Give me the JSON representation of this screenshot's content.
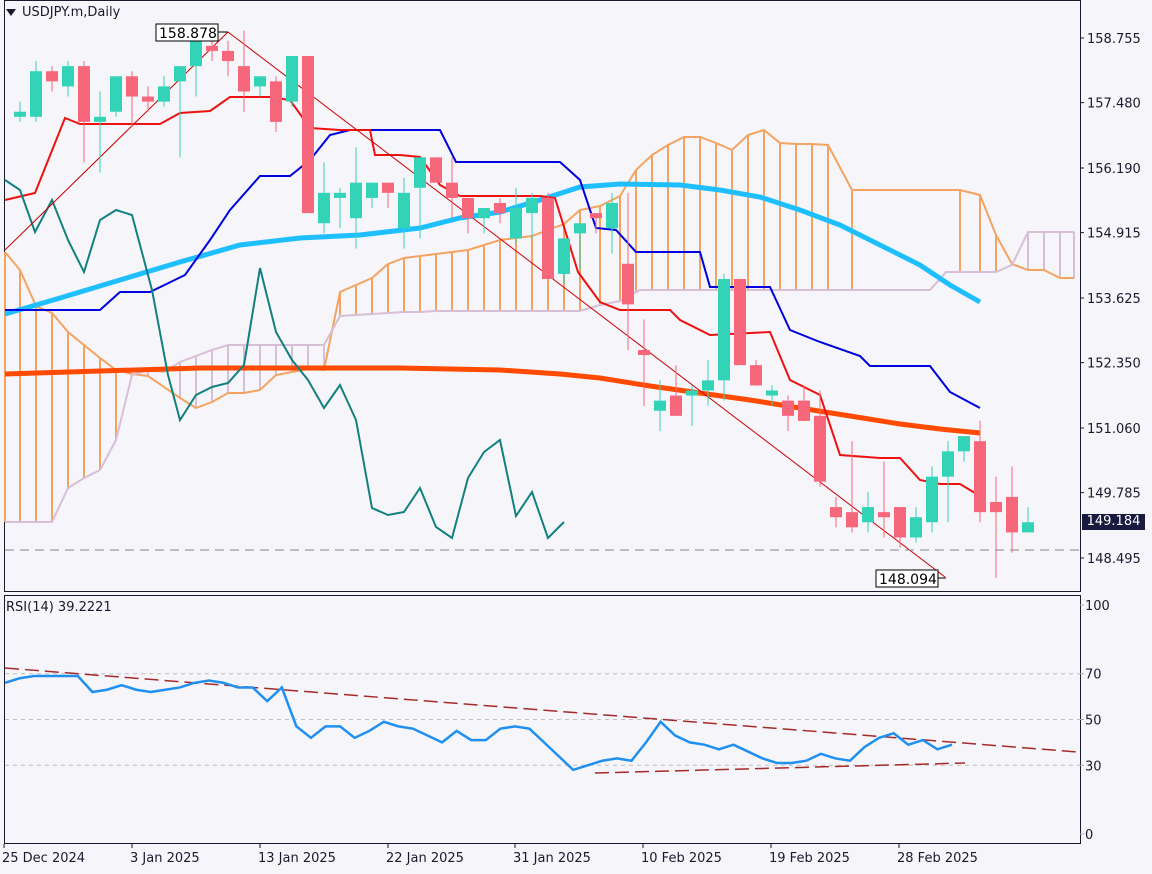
{
  "header": {
    "symbol_label": "USDJPY.m,Daily",
    "dropdown_icon": "triangle-down"
  },
  "current_price": "149.184",
  "annotations": {
    "high_label": "158.878",
    "low_label": "148.094"
  },
  "rsi": {
    "label": "RSI(14) 39.2221"
  },
  "colors": {
    "background": "#f5f5fa",
    "axis": "#1a1a2e",
    "bull": "#33d3b8",
    "bear": "#f7677b",
    "tenkan": "#ee1111",
    "kijun": "#0000dd",
    "chikou": "#138080",
    "ma_fast": "#1fbfff",
    "ma_slow": "#ff4a00",
    "span_a": "#f4a460",
    "span_b": "#d8bfd8",
    "rsi_line": "#2090f0",
    "trendline": "#cc0000",
    "rsi_trend": "#a52a2a",
    "current_tag": "#181a40"
  },
  "chart_data": [
    {
      "type": "candlestick",
      "title": "USDJPY.m,Daily",
      "yaxis": {
        "ticks": [
          "158.755",
          "157.480",
          "156.190",
          "154.915",
          "153.625",
          "152.350",
          "151.060",
          "149.785",
          "148.495"
        ],
        "range": [
          148.0,
          159.1
        ]
      },
      "xaxis": {
        "ticks": [
          "25 Dec 2024",
          "3 Jan 2025",
          "13 Jan 2025",
          "22 Jan 2025",
          "31 Jan 2025",
          "10 Feb 2025",
          "19 Feb 2025",
          "28 Feb 2025"
        ]
      },
      "candles_ohlc": [
        [
          157.2,
          157.5,
          157.1,
          157.3
        ],
        [
          157.2,
          158.3,
          157.1,
          158.1
        ],
        [
          158.1,
          158.2,
          157.7,
          157.9
        ],
        [
          157.8,
          158.3,
          157.6,
          158.2
        ],
        [
          158.2,
          158.3,
          156.3,
          157.1
        ],
        [
          157.1,
          157.7,
          156.1,
          157.2
        ],
        [
          157.3,
          158.0,
          157.2,
          158.0
        ],
        [
          158.0,
          158.1,
          157.0,
          157.6
        ],
        [
          157.6,
          157.8,
          157.3,
          157.5
        ],
        [
          157.5,
          158.0,
          157.4,
          157.8
        ],
        [
          157.9,
          158.2,
          156.4,
          158.2
        ],
        [
          158.2,
          158.9,
          157.6,
          158.9
        ],
        [
          158.6,
          158.9,
          158.3,
          158.5
        ],
        [
          158.5,
          158.7,
          158.0,
          158.3
        ],
        [
          158.2,
          158.9,
          157.3,
          157.7
        ],
        [
          157.8,
          158.0,
          157.6,
          158.0
        ],
        [
          157.9,
          158.0,
          156.9,
          157.1
        ],
        [
          157.5,
          158.4,
          157.4,
          158.4
        ],
        [
          158.4,
          158.4,
          155.3,
          155.3
        ],
        [
          155.1,
          156.3,
          154.9,
          155.7
        ],
        [
          155.6,
          155.8,
          155.0,
          155.7
        ],
        [
          155.2,
          156.6,
          154.6,
          155.9
        ],
        [
          155.6,
          155.9,
          155.4,
          155.9
        ],
        [
          155.9,
          155.9,
          155.4,
          155.7
        ],
        [
          155.0,
          156.0,
          154.6,
          155.7
        ],
        [
          155.8,
          156.1,
          154.8,
          156.4
        ],
        [
          156.4,
          156.4,
          155.9,
          155.9
        ],
        [
          155.9,
          156.4,
          155.2,
          155.6
        ],
        [
          155.6,
          155.6,
          154.9,
          155.2
        ],
        [
          155.2,
          155.3,
          154.9,
          155.4
        ],
        [
          155.5,
          155.6,
          155.1,
          155.3
        ],
        [
          154.8,
          155.8,
          154.7,
          155.4
        ],
        [
          155.3,
          155.7,
          154.8,
          155.6
        ],
        [
          155.6,
          155.7,
          154.0,
          154.0
        ],
        [
          154.1,
          154.8,
          153.9,
          154.8
        ],
        [
          154.9,
          155.0,
          154.2,
          155.1
        ],
        [
          155.3,
          155.3,
          154.9,
          155.2
        ],
        [
          155.0,
          155.7,
          154.5,
          155.5
        ],
        [
          154.3,
          155.7,
          152.6,
          153.5
        ],
        [
          152.6,
          153.2,
          151.5,
          152.5
        ],
        [
          151.4,
          152.0,
          151.0,
          151.6
        ],
        [
          151.7,
          152.3,
          151.4,
          151.3
        ],
        [
          151.7,
          151.9,
          151.1,
          151.8
        ],
        [
          151.8,
          152.4,
          151.5,
          152.0
        ],
        [
          152.0,
          154.1,
          151.6,
          154.0
        ],
        [
          154.0,
          154.0,
          152.5,
          152.3
        ],
        [
          152.3,
          152.4,
          151.9,
          151.9
        ],
        [
          151.7,
          151.9,
          151.5,
          151.8
        ],
        [
          151.6,
          151.7,
          151.0,
          151.3
        ],
        [
          151.6,
          151.9,
          151.3,
          151.2
        ],
        [
          151.3,
          151.8,
          149.9,
          150.0
        ],
        [
          149.5,
          149.7,
          149.1,
          149.3
        ],
        [
          149.4,
          150.8,
          149.0,
          149.1
        ],
        [
          149.2,
          149.8,
          149.0,
          149.5
        ],
        [
          149.4,
          150.4,
          148.9,
          149.3
        ],
        [
          149.5,
          149.2,
          148.7,
          148.9
        ],
        [
          148.9,
          149.5,
          148.8,
          149.3
        ],
        [
          149.2,
          150.3,
          149.0,
          150.1
        ],
        [
          150.1,
          150.8,
          149.2,
          150.6
        ],
        [
          150.6,
          150.8,
          150.4,
          150.9
        ],
        [
          150.8,
          151.2,
          149.2,
          149.4
        ],
        [
          149.6,
          150.1,
          148.1,
          149.4
        ],
        [
          149.7,
          150.3,
          148.6,
          149.0
        ],
        [
          149.0,
          149.5,
          149.0,
          149.2
        ]
      ],
      "overlays": [
        "Tenkan-sen (red)",
        "Kijun-sen (blue)",
        "Chikou span (teal)",
        "MA fast (light blue)",
        "MA slow (orange-red)",
        "Ichimoku cloud Senkou A/B",
        "Trendline 158.878 to 148.094"
      ],
      "horizontal_line": 148.75
    },
    {
      "type": "line",
      "title": "RSI(14) 39.2221",
      "yaxis": {
        "ticks": [
          "100",
          "70",
          "50",
          "30",
          "0"
        ],
        "range": [
          0,
          100
        ]
      },
      "levels": [
        70,
        50,
        30
      ],
      "rsi_values": [
        66,
        68,
        69,
        69,
        69,
        69,
        62,
        63,
        65,
        63,
        62,
        63,
        64,
        66,
        67,
        66,
        64,
        64,
        58,
        64,
        47,
        42,
        47,
        47,
        42,
        45,
        49,
        47,
        46,
        43,
        40,
        45,
        41,
        41,
        46,
        47,
        46,
        40,
        34,
        28,
        30,
        32,
        33,
        32,
        40,
        49,
        43,
        40,
        39,
        37,
        39,
        36,
        33,
        31,
        31,
        32,
        35,
        33,
        32,
        38,
        42,
        44,
        39,
        41,
        37,
        39
      ]
    }
  ]
}
